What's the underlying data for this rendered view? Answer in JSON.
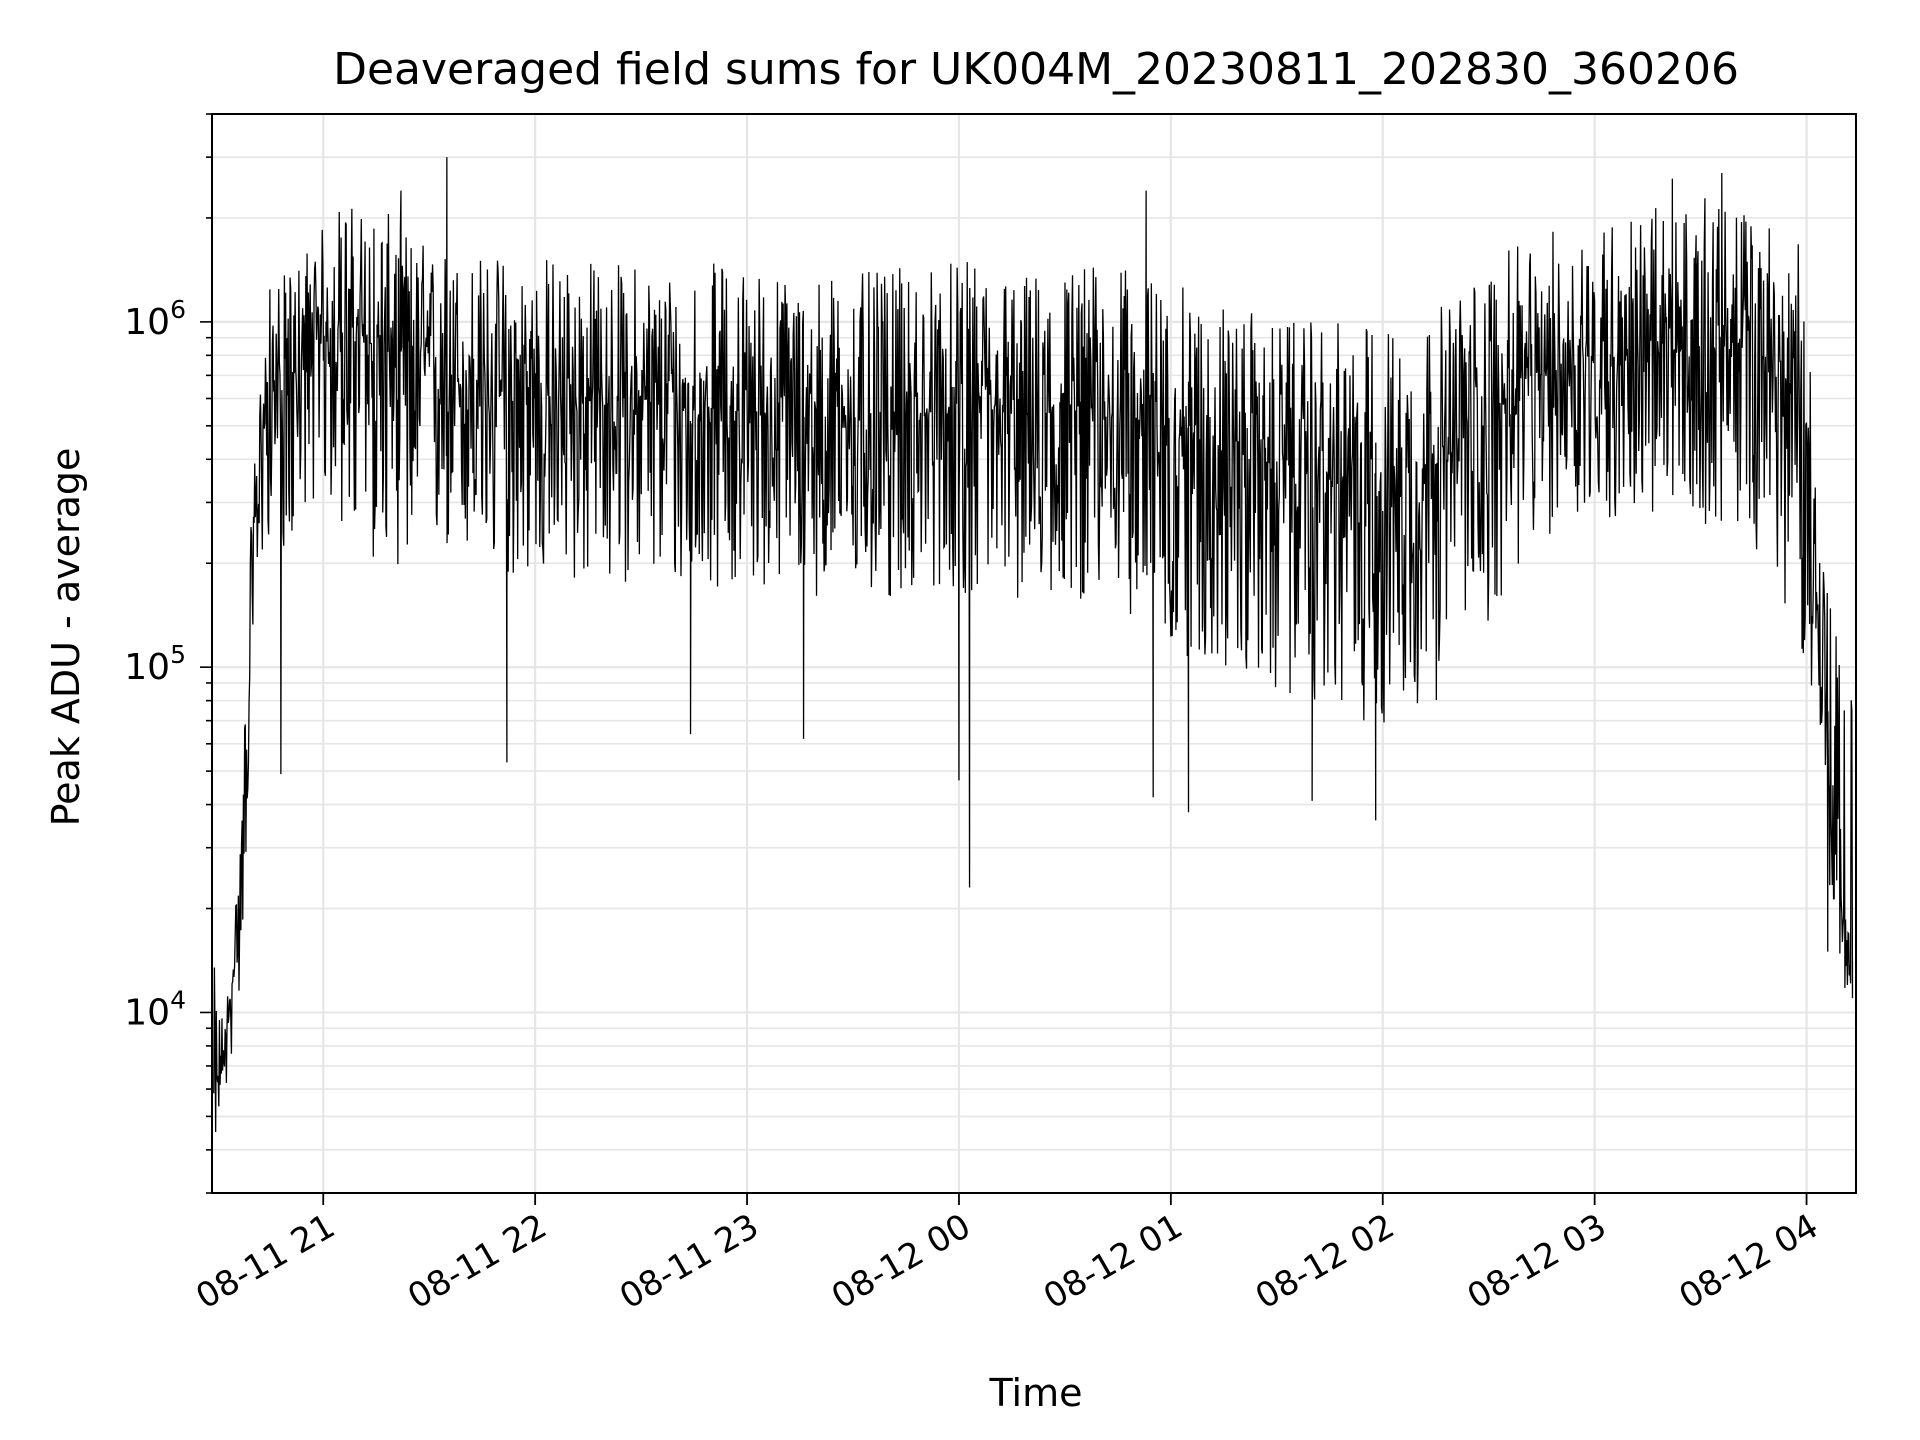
{
  "chart_data": {
    "type": "line",
    "title": "Deaveraged field sums for UK004M_20230811_202830_360206",
    "xlabel": "Time",
    "ylabel": "Peak ADU - average",
    "y_scale": "log",
    "ylim": [
      3000,
      4000000
    ],
    "xlim": [
      "2023-08-11 20:28:30",
      "2023-08-12 04:14:00"
    ],
    "grid": true,
    "legend": "none",
    "line_color": "#000000",
    "grid_color": "#e6e6e6",
    "x_ticks": [
      {
        "label": "08-11 21",
        "value": "2023-08-11 21:00"
      },
      {
        "label": "08-11 22",
        "value": "2023-08-11 22:00"
      },
      {
        "label": "08-11 23",
        "value": "2023-08-11 23:00"
      },
      {
        "label": "08-12 00",
        "value": "2023-08-12 00:00"
      },
      {
        "label": "08-12 01",
        "value": "2023-08-12 01:00"
      },
      {
        "label": "08-12 02",
        "value": "2023-08-12 02:00"
      },
      {
        "label": "08-12 03",
        "value": "2023-08-12 03:00"
      },
      {
        "label": "08-12 04",
        "value": "2023-08-12 04:00"
      }
    ],
    "y_ticks": [
      {
        "base": "10",
        "exp": "4",
        "value": 10000
      },
      {
        "base": "10",
        "exp": "5",
        "value": 100000
      },
      {
        "base": "10",
        "exp": "6",
        "value": 1000000
      }
    ],
    "series": [
      {
        "x": [
          "2023-08-11 20:29",
          "2023-08-11 20:31",
          "2023-08-11 20:33",
          "2023-08-11 20:35",
          "2023-08-11 20:37",
          "2023-08-11 20:39",
          "2023-08-11 20:41",
          "2023-08-11 20:43",
          "2023-08-11 20:45",
          "2023-08-11 20:50",
          "2023-08-11 20:55",
          "2023-08-11 21:00",
          "2023-08-11 21:05",
          "2023-08-11 21:10",
          "2023-08-11 21:15",
          "2023-08-11 21:20",
          "2023-08-11 21:25",
          "2023-08-11 21:30",
          "2023-08-11 21:40",
          "2023-08-11 21:50",
          "2023-08-11 22:00",
          "2023-08-11 22:10",
          "2023-08-11 22:20",
          "2023-08-11 22:30",
          "2023-08-11 22:40",
          "2023-08-11 22:50",
          "2023-08-11 23:00",
          "2023-08-11 23:10",
          "2023-08-11 23:20",
          "2023-08-11 23:30",
          "2023-08-11 23:40",
          "2023-08-11 23:50",
          "2023-08-12 00:00",
          "2023-08-12 00:10",
          "2023-08-12 00:20",
          "2023-08-12 00:30",
          "2023-08-12 00:40",
          "2023-08-12 00:50",
          "2023-08-12 01:00",
          "2023-08-12 01:10",
          "2023-08-12 01:20",
          "2023-08-12 01:30",
          "2023-08-12 01:40",
          "2023-08-12 01:50",
          "2023-08-12 02:00",
          "2023-08-12 02:10",
          "2023-08-12 02:20",
          "2023-08-12 02:30",
          "2023-08-12 02:40",
          "2023-08-12 02:50",
          "2023-08-12 03:00",
          "2023-08-12 03:10",
          "2023-08-12 03:20",
          "2023-08-12 03:30",
          "2023-08-12 03:40",
          "2023-08-12 03:50",
          "2023-08-12 04:00",
          "2023-08-12 04:04",
          "2023-08-12 04:07",
          "2023-08-12 04:10",
          "2023-08-12 04:13"
        ],
        "median": [
          5000,
          7000,
          9000,
          15000,
          30000,
          100000,
          300000,
          500000,
          700000,
          600000,
          800000,
          900000,
          1000000,
          900000,
          850000,
          800000,
          850000,
          750000,
          650000,
          600000,
          600000,
          600000,
          580000,
          600000,
          550000,
          560000,
          550000,
          540000,
          520000,
          520000,
          500000,
          530000,
          550000,
          540000,
          520000,
          550000,
          560000,
          520000,
          480000,
          450000,
          420000,
          380000,
          360000,
          330000,
          340000,
          360000,
          420000,
          550000,
          650000,
          750000,
          800000,
          780000,
          800000,
          850000,
          850000,
          750000,
          500000,
          100000,
          40000,
          20000,
          15000
        ],
        "low": [
          4000,
          5500,
          6000,
          9000,
          13000,
          50000,
          150000,
          200000,
          250000,
          200000,
          300000,
          300000,
          250000,
          200000,
          200000,
          200000,
          180000,
          200000,
          200000,
          180000,
          180000,
          170000,
          170000,
          180000,
          160000,
          170000,
          170000,
          170000,
          160000,
          160000,
          150000,
          170000,
          160000,
          160000,
          150000,
          160000,
          150000,
          140000,
          110000,
          100000,
          90000,
          80000,
          80000,
          70000,
          65000,
          70000,
          90000,
          130000,
          200000,
          250000,
          270000,
          260000,
          260000,
          260000,
          250000,
          200000,
          100000,
          50000,
          20000,
          12000,
          10000
        ],
        "high": [
          14000,
          10000,
          12000,
          20000,
          40000,
          200000,
          500000,
          900000,
          1300000,
          1400000,
          1700000,
          1900000,
          2300000,
          2200000,
          2200000,
          2000000,
          1800000,
          1700000,
          1600000,
          1600000,
          1600000,
          1600000,
          1500000,
          1500000,
          1500000,
          1500000,
          1500000,
          1400000,
          1400000,
          1400000,
          1400000,
          1500000,
          1500000,
          1500000,
          1400000,
          1500000,
          1500000,
          1400000,
          1300000,
          1200000,
          1100000,
          1000000,
          1000000,
          1000000,
          1000000,
          1000000,
          1200000,
          1500000,
          1700000,
          1900000,
          2000000,
          2100000,
          2200000,
          2300000,
          2200000,
          2000000,
          1600000,
          300000,
          150000,
          100000,
          100000
        ],
        "spikes_down": [
          {
            "x": "2023-08-11 20:48",
            "y": 49000
          },
          {
            "x": "2023-08-11 21:52",
            "y": 53000
          },
          {
            "x": "2023-08-11 22:44",
            "y": 64000
          },
          {
            "x": "2023-08-11 23:16",
            "y": 62000
          },
          {
            "x": "2023-08-12 00:00",
            "y": 47000
          },
          {
            "x": "2023-08-12 00:03",
            "y": 23000
          },
          {
            "x": "2023-08-12 00:55",
            "y": 42000
          },
          {
            "x": "2023-08-12 01:05",
            "y": 38000
          },
          {
            "x": "2023-08-12 01:40",
            "y": 41000
          },
          {
            "x": "2023-08-12 01:58",
            "y": 36000
          },
          {
            "x": "2023-08-12 04:06",
            "y": 15000
          },
          {
            "x": "2023-08-12 04:13",
            "y": 11000
          }
        ],
        "spikes_up": [
          {
            "x": "2023-08-11 21:35",
            "y": 3000000
          },
          {
            "x": "2023-08-11 21:22",
            "y": 2400000
          },
          {
            "x": "2023-08-12 00:53",
            "y": 2400000
          },
          {
            "x": "2023-08-12 03:22",
            "y": 2600000
          },
          {
            "x": "2023-08-12 03:36",
            "y": 2700000
          }
        ]
      }
    ]
  }
}
